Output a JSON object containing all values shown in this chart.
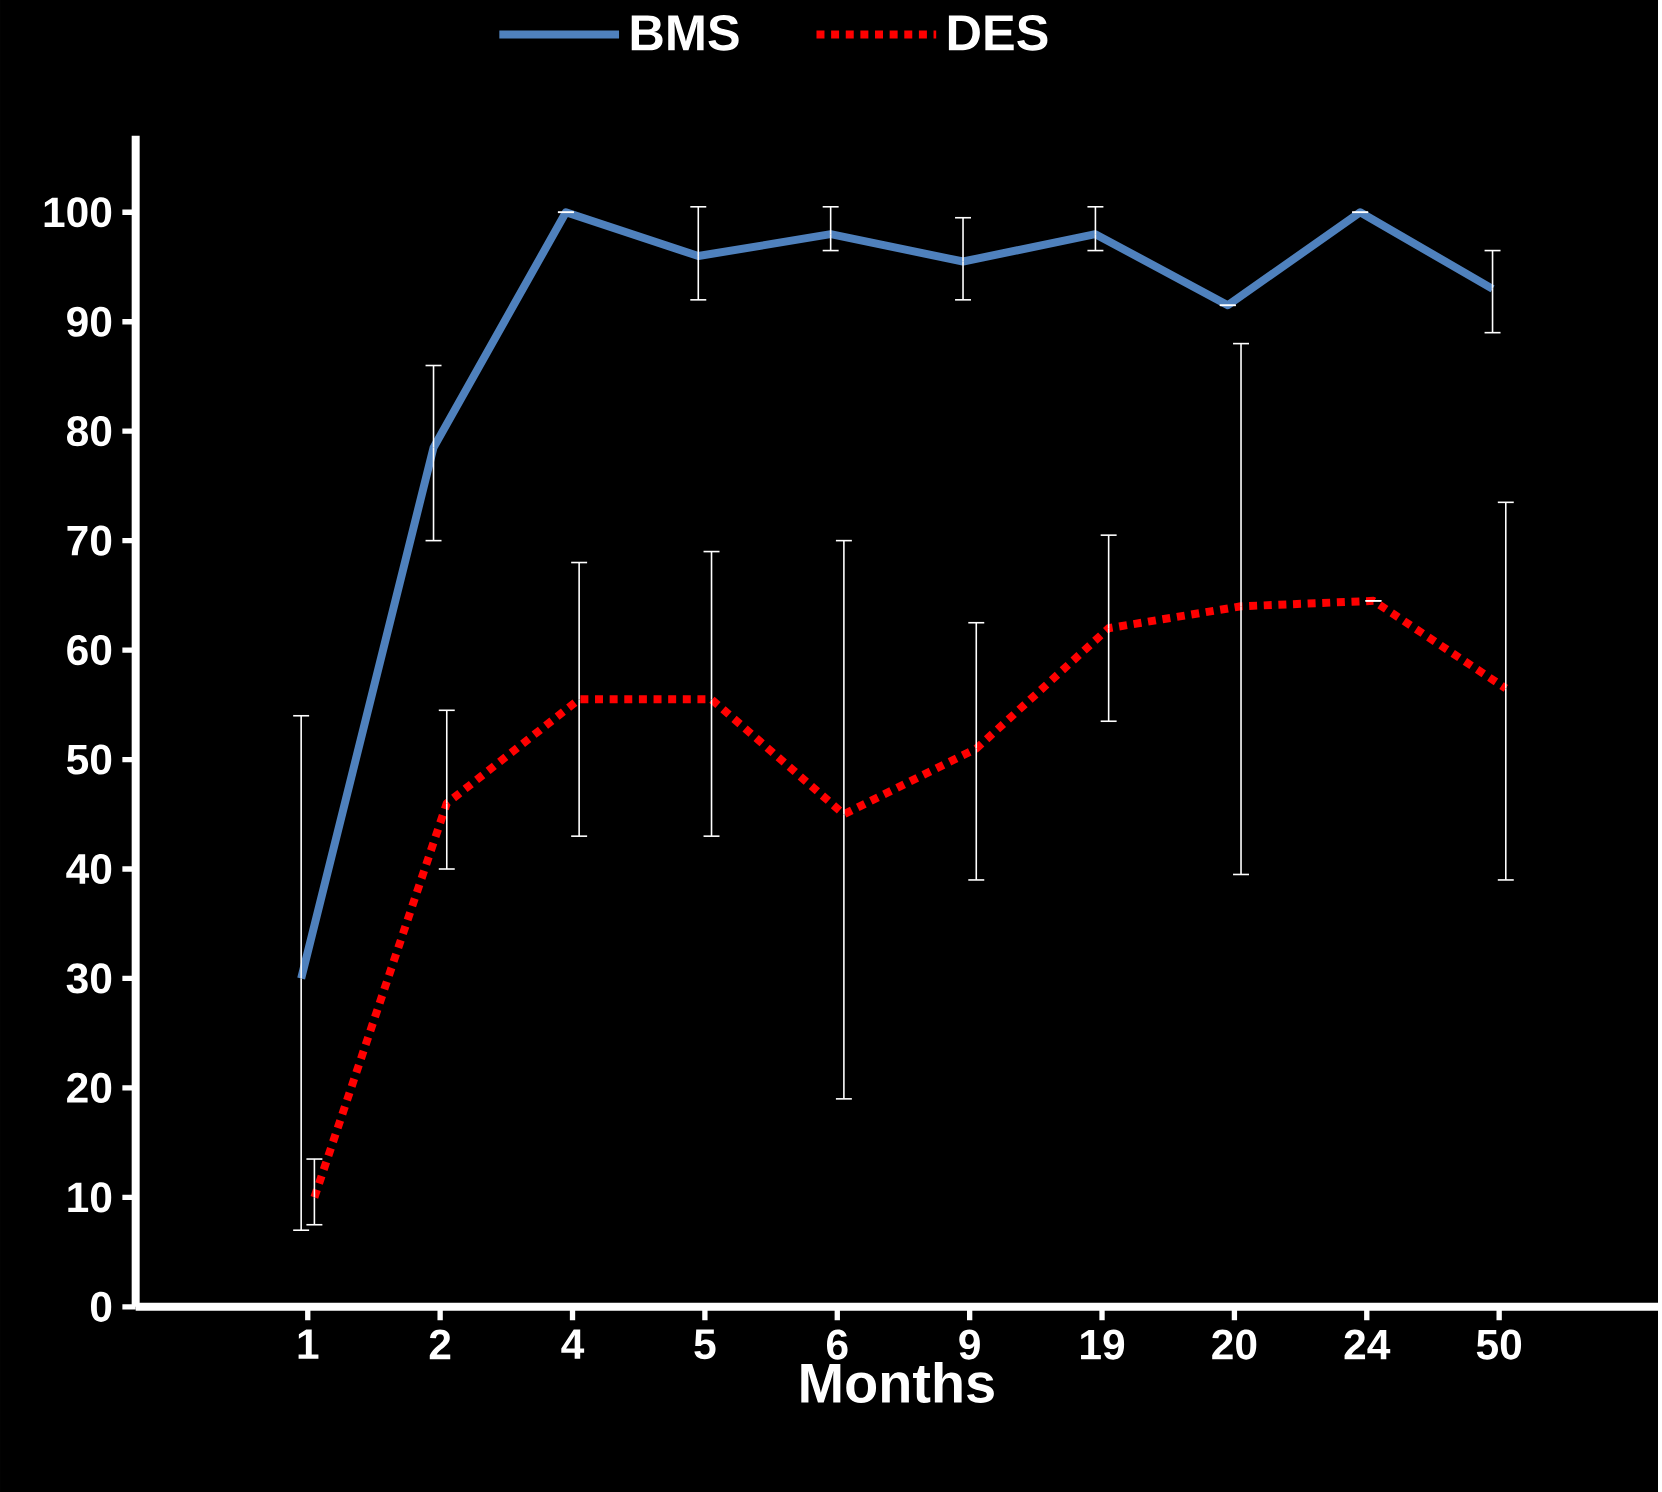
{
  "chart_data": {
    "type": "line",
    "xlabel": "Months",
    "categories": [
      "1",
      "2",
      "4",
      "5",
      "6",
      "9",
      "19",
      "20",
      "24",
      "50"
    ],
    "series": [
      {
        "name": "BMS",
        "color": "#4f81bd",
        "line_style": "solid",
        "values": [
          30,
          78.5,
          100,
          96,
          98,
          95.5,
          98,
          91.5,
          100,
          93
        ],
        "errors": [
          [
            7,
            54
          ],
          [
            70,
            86
          ],
          null,
          [
            92,
            100.5
          ],
          [
            96.5,
            100.5
          ],
          [
            92,
            99.5
          ],
          [
            96.5,
            100.5
          ],
          null,
          null,
          [
            89,
            96.5
          ]
        ]
      },
      {
        "name": "DES",
        "color": "#ff0000",
        "line_style": "dotted",
        "values": [
          10,
          46,
          55.5,
          55.5,
          45,
          51,
          62,
          64,
          64.5,
          56.5
        ],
        "errors": [
          [
            7.5,
            13.5
          ],
          [
            40,
            54.5
          ],
          [
            43,
            68
          ],
          [
            43,
            69
          ],
          [
            19,
            70
          ],
          [
            39,
            62.5
          ],
          [
            53.5,
            70.5
          ],
          [
            39.5,
            88
          ],
          null,
          [
            39,
            73.5
          ]
        ]
      }
    ],
    "ylim": [
      0,
      107
    ],
    "yticks": [
      0,
      10,
      20,
      30,
      40,
      50,
      60,
      70,
      80,
      90,
      100
    ],
    "grid": false,
    "legend": "top"
  }
}
